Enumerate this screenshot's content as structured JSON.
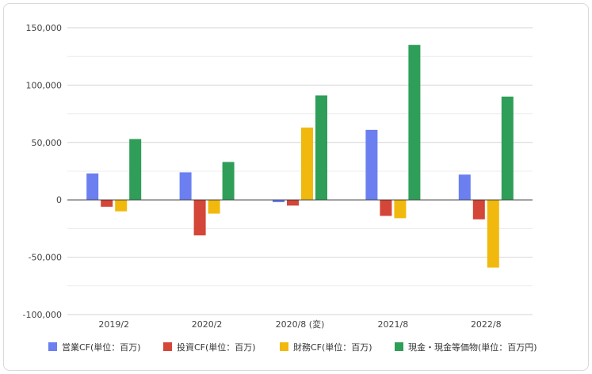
{
  "chart_data": {
    "type": "bar",
    "categories": [
      "2019/2",
      "2020/2",
      "2020/8 (変)",
      "2021/8",
      "2022/8"
    ],
    "series": [
      {
        "name": "営業CF(単位：百万)",
        "color": "#6b7ff0",
        "values": [
          23000,
          24000,
          -2000,
          61000,
          22000
        ]
      },
      {
        "name": "投資CF(単位：百万)",
        "color": "#d44638",
        "values": [
          -6000,
          -31000,
          -5000,
          -14000,
          -17000
        ]
      },
      {
        "name": "財務CF(単位：百万)",
        "color": "#f1b90e",
        "values": [
          -10000,
          -12000,
          63000,
          -16000,
          -59000
        ]
      },
      {
        "name": "現金・現金等価物(単位：百万円)",
        "color": "#2e9e58",
        "values": [
          53000,
          33000,
          91000,
          135000,
          90000
        ]
      }
    ],
    "yticks": [
      150000,
      100000,
      50000,
      0,
      -50000,
      -100000
    ],
    "ytick_labels": [
      "150,000",
      "100,000",
      "50,000",
      "0",
      "-50,000",
      "-100,000"
    ],
    "ylim": [
      -100000,
      150000
    ],
    "grid": true,
    "legend_position": "bottom"
  }
}
